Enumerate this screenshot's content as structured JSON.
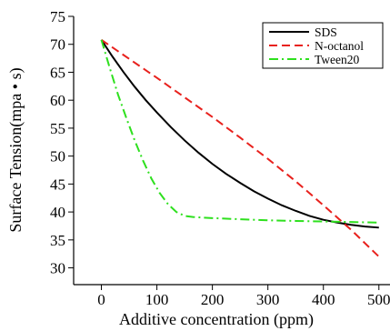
{
  "chart_data": {
    "type": "line",
    "xlabel": "Additive concentration (ppm)",
    "ylabel": "Surface Tension(mpa • s)",
    "xlim": [
      -50,
      520
    ],
    "ylim": [
      27,
      75
    ],
    "xticks": [
      0,
      100,
      200,
      300,
      400,
      500
    ],
    "yticks": [
      30,
      35,
      40,
      45,
      50,
      55,
      60,
      65,
      70,
      75
    ],
    "grid": false,
    "legend_position": "top-right",
    "series": [
      {
        "name": "SDS",
        "color": "#000000",
        "dash": "solid",
        "x": [
          0,
          20,
          40,
          60,
          80,
          100,
          125,
          150,
          175,
          200,
          225,
          250,
          275,
          300,
          325,
          350,
          375,
          400,
          425,
          450,
          475,
          500
        ],
        "y": [
          70.8,
          67.8,
          65.0,
          62.4,
          60.0,
          57.8,
          55.2,
          52.8,
          50.6,
          48.6,
          46.8,
          45.2,
          43.7,
          42.4,
          41.2,
          40.2,
          39.3,
          38.6,
          38.1,
          37.7,
          37.4,
          37.2
        ]
      },
      {
        "name": "N-octanol",
        "color": "#e8211d",
        "dash": "dashed",
        "x": [
          0,
          50,
          100,
          150,
          200,
          250,
          300,
          350,
          400,
          450,
          500
        ],
        "y": [
          70.8,
          67.4,
          64.0,
          60.5,
          57.0,
          53.3,
          49.5,
          45.5,
          41.2,
          36.8,
          32.0
        ]
      },
      {
        "name": "Tween20",
        "color": "#2ee01e",
        "dash": "dashdot",
        "x": [
          0,
          15,
          30,
          45,
          60,
          75,
          90,
          105,
          120,
          135,
          150,
          165,
          180,
          200,
          250,
          300,
          350,
          400,
          450,
          500
        ],
        "y": [
          70.8,
          65.8,
          61.0,
          56.8,
          52.8,
          49.2,
          46.0,
          43.4,
          41.4,
          40.0,
          39.3,
          39.1,
          39.0,
          38.9,
          38.7,
          38.5,
          38.4,
          38.3,
          38.2,
          38.1
        ]
      }
    ]
  }
}
